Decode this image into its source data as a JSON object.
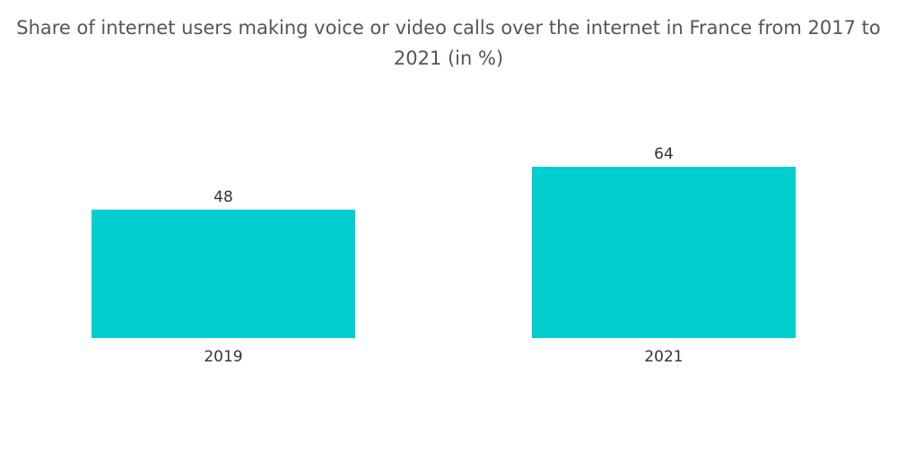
{
  "chart_data": {
    "type": "bar",
    "title": "Share of internet users making voice or video calls over the internet in France from 2017 to 2021 (in %)",
    "categories": [
      "2019",
      "2021"
    ],
    "values": [
      48,
      64
    ],
    "xlabel": "",
    "ylabel": "",
    "ylim": [
      0,
      64
    ],
    "grid": false,
    "legend": "none",
    "bar_color": "#00CED1",
    "data_labels": true
  }
}
